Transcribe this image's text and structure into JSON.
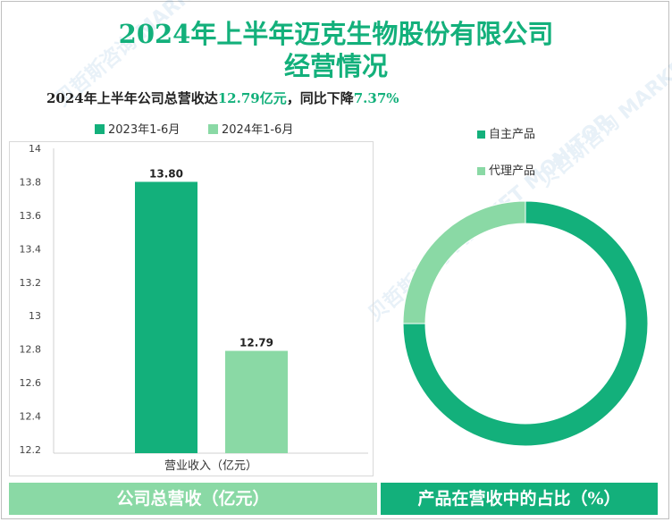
{
  "title_line1": "2024年上半年迈克生物股份有限公司",
  "title_line2": "经营情况",
  "subtitle": {
    "prefix": "2024年上半年公司总营收达",
    "revenue": "12.79亿元",
    "middle": "，同比下降",
    "decline": "7.37%"
  },
  "watermark": "贝哲斯咨询 MARKET MONITOR",
  "footer": {
    "left": "公司总营收（亿元）",
    "right": "产品在营收中的占比（%）"
  },
  "colors": {
    "dark_green": "#13b07b",
    "light_green": "#8ad9a5"
  },
  "chart_data": [
    {
      "type": "bar",
      "categories": [
        "营业收入（亿元）"
      ],
      "series": [
        {
          "name": "2023年1-6月",
          "values": [
            13.8
          ],
          "color": "#13b07b"
        },
        {
          "name": "2024年1-6月",
          "values": [
            12.79
          ],
          "color": "#8ad9a5"
        }
      ],
      "data_labels": [
        "13.80",
        "12.79"
      ],
      "ylim": [
        12.2,
        14
      ],
      "yticks": [
        "14",
        "13.8",
        "13.6",
        "13.4",
        "13.2",
        "13",
        "12.8",
        "12.6",
        "12.4",
        "12.2"
      ],
      "legend_placement": "top",
      "grid": false
    },
    {
      "type": "pie",
      "variant": "donut",
      "labels": [
        "自主产品",
        "代理产品"
      ],
      "values": [
        75,
        25
      ],
      "colors": [
        "#13b07b",
        "#8ad9a5"
      ],
      "legend_placement": "top-right"
    }
  ]
}
